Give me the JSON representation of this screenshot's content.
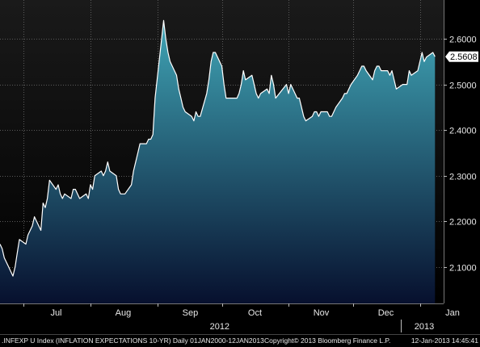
{
  "chart_data": {
    "type": "area",
    "title": "",
    "xlabel": "",
    "ylabel": "",
    "ylim": [
      2.02,
      2.685
    ],
    "y_ticks": [
      "2.6000",
      "2.5000",
      "2.4000",
      "2.3000",
      "2.2000",
      "2.1000"
    ],
    "y_tick_values": [
      2.6,
      2.5,
      2.4,
      2.3,
      2.2,
      2.1
    ],
    "month_ticks": [
      {
        "label": "Jul",
        "date": "2012-07-01"
      },
      {
        "label": "Aug",
        "date": "2012-08-01"
      },
      {
        "label": "Sep",
        "date": "2012-09-01"
      },
      {
        "label": "Oct",
        "date": "2012-10-01"
      },
      {
        "label": "Nov",
        "date": "2012-11-01"
      },
      {
        "label": "Dec",
        "date": "2012-12-01"
      },
      {
        "label": "Jan",
        "date": "2013-01-01"
      }
    ],
    "year_labels": [
      {
        "label": "2012",
        "date": "2012-09-30"
      },
      {
        "label": "2013",
        "date": "2013-01-03"
      }
    ],
    "x_range": [
      "2012-06-20",
      "2013-01-12"
    ],
    "last_value": "2.5608",
    "grid": true,
    "colors": {
      "background_top": "#1a1a1a",
      "background_bottom": "#000000",
      "area_top": "#3fa3b4",
      "area_bottom": "#07102e",
      "line": "#ffffff",
      "grid": "#5a5a5a",
      "last_box": "#ffffff"
    },
    "series": [
      {
        "points": [
          [
            "2012-06-20",
            2.15
          ],
          [
            "2012-06-21",
            2.14
          ],
          [
            "2012-06-22",
            2.12
          ],
          [
            "2012-06-24",
            2.1
          ],
          [
            "2012-06-25",
            2.09
          ],
          [
            "2012-06-26",
            2.08
          ],
          [
            "2012-06-27",
            2.1
          ],
          [
            "2012-06-28",
            2.13
          ],
          [
            "2012-06-29",
            2.16
          ],
          [
            "2012-07-02",
            2.15
          ],
          [
            "2012-07-03",
            2.17
          ],
          [
            "2012-07-05",
            2.19
          ],
          [
            "2012-07-06",
            2.21
          ],
          [
            "2012-07-09",
            2.18
          ],
          [
            "2012-07-10",
            2.24
          ],
          [
            "2012-07-11",
            2.23
          ],
          [
            "2012-07-12",
            2.25
          ],
          [
            "2012-07-13",
            2.29
          ],
          [
            "2012-07-16",
            2.27
          ],
          [
            "2012-07-17",
            2.28
          ],
          [
            "2012-07-18",
            2.26
          ],
          [
            "2012-07-19",
            2.25
          ],
          [
            "2012-07-20",
            2.26
          ],
          [
            "2012-07-23",
            2.25
          ],
          [
            "2012-07-24",
            2.27
          ],
          [
            "2012-07-25",
            2.27
          ],
          [
            "2012-07-26",
            2.26
          ],
          [
            "2012-07-27",
            2.25
          ],
          [
            "2012-07-30",
            2.26
          ],
          [
            "2012-07-31",
            2.25
          ],
          [
            "2012-08-01",
            2.28
          ],
          [
            "2012-08-02",
            2.27
          ],
          [
            "2012-08-03",
            2.3
          ],
          [
            "2012-08-06",
            2.31
          ],
          [
            "2012-08-07",
            2.3
          ],
          [
            "2012-08-08",
            2.31
          ],
          [
            "2012-08-09",
            2.33
          ],
          [
            "2012-08-10",
            2.31
          ],
          [
            "2012-08-13",
            2.3
          ],
          [
            "2012-08-14",
            2.27
          ],
          [
            "2012-08-15",
            2.26
          ],
          [
            "2012-08-16",
            2.26
          ],
          [
            "2012-08-17",
            2.26
          ],
          [
            "2012-08-20",
            2.28
          ],
          [
            "2012-08-21",
            2.31
          ],
          [
            "2012-08-22",
            2.33
          ],
          [
            "2012-08-23",
            2.35
          ],
          [
            "2012-08-24",
            2.37
          ],
          [
            "2012-08-27",
            2.37
          ],
          [
            "2012-08-28",
            2.38
          ],
          [
            "2012-08-29",
            2.38
          ],
          [
            "2012-08-30",
            2.39
          ],
          [
            "2012-08-31",
            2.47
          ],
          [
            "2012-09-04",
            2.64
          ],
          [
            "2012-09-05",
            2.6
          ],
          [
            "2012-09-06",
            2.57
          ],
          [
            "2012-09-07",
            2.55
          ],
          [
            "2012-09-10",
            2.52
          ],
          [
            "2012-09-11",
            2.49
          ],
          [
            "2012-09-12",
            2.47
          ],
          [
            "2012-09-13",
            2.45
          ],
          [
            "2012-09-14",
            2.44
          ],
          [
            "2012-09-17",
            2.43
          ],
          [
            "2012-09-18",
            2.42
          ],
          [
            "2012-09-19",
            2.44
          ],
          [
            "2012-09-20",
            2.43
          ],
          [
            "2012-09-21",
            2.43
          ],
          [
            "2012-09-24",
            2.48
          ],
          [
            "2012-09-25",
            2.51
          ],
          [
            "2012-09-26",
            2.55
          ],
          [
            "2012-09-27",
            2.57
          ],
          [
            "2012-09-28",
            2.57
          ],
          [
            "2012-10-01",
            2.54
          ],
          [
            "2012-10-02",
            2.5
          ],
          [
            "2012-10-03",
            2.47
          ],
          [
            "2012-10-04",
            2.47
          ],
          [
            "2012-10-05",
            2.47
          ],
          [
            "2012-10-08",
            2.47
          ],
          [
            "2012-10-09",
            2.48
          ],
          [
            "2012-10-10",
            2.5
          ],
          [
            "2012-10-11",
            2.53
          ],
          [
            "2012-10-12",
            2.51
          ],
          [
            "2012-10-15",
            2.52
          ],
          [
            "2012-10-16",
            2.5
          ],
          [
            "2012-10-17",
            2.48
          ],
          [
            "2012-10-18",
            2.47
          ],
          [
            "2012-10-19",
            2.48
          ],
          [
            "2012-10-22",
            2.49
          ],
          [
            "2012-10-23",
            2.48
          ],
          [
            "2012-10-24",
            2.52
          ],
          [
            "2012-10-25",
            2.5
          ],
          [
            "2012-10-26",
            2.47
          ],
          [
            "2012-10-31",
            2.5
          ],
          [
            "2012-11-01",
            2.48
          ],
          [
            "2012-11-02",
            2.5
          ],
          [
            "2012-11-05",
            2.47
          ],
          [
            "2012-11-06",
            2.47
          ],
          [
            "2012-11-07",
            2.45
          ],
          [
            "2012-11-08",
            2.43
          ],
          [
            "2012-11-09",
            2.42
          ],
          [
            "2012-11-12",
            2.43
          ],
          [
            "2012-11-13",
            2.44
          ],
          [
            "2012-11-14",
            2.44
          ],
          [
            "2012-11-15",
            2.43
          ],
          [
            "2012-11-16",
            2.44
          ],
          [
            "2012-11-19",
            2.44
          ],
          [
            "2012-11-20",
            2.43
          ],
          [
            "2012-11-21",
            2.43
          ],
          [
            "2012-11-23",
            2.45
          ],
          [
            "2012-11-26",
            2.47
          ],
          [
            "2012-11-27",
            2.48
          ],
          [
            "2012-11-28",
            2.48
          ],
          [
            "2012-11-29",
            2.49
          ],
          [
            "2012-11-30",
            2.5
          ],
          [
            "2012-12-03",
            2.52
          ],
          [
            "2012-12-04",
            2.53
          ],
          [
            "2012-12-05",
            2.54
          ],
          [
            "2012-12-06",
            2.54
          ],
          [
            "2012-12-07",
            2.53
          ],
          [
            "2012-12-10",
            2.51
          ],
          [
            "2012-12-11",
            2.53
          ],
          [
            "2012-12-12",
            2.54
          ],
          [
            "2012-12-13",
            2.54
          ],
          [
            "2012-12-14",
            2.53
          ],
          [
            "2012-12-17",
            2.53
          ],
          [
            "2012-12-18",
            2.52
          ],
          [
            "2012-12-19",
            2.53
          ],
          [
            "2012-12-20",
            2.51
          ],
          [
            "2012-12-21",
            2.49
          ],
          [
            "2012-12-24",
            2.5
          ],
          [
            "2012-12-26",
            2.5
          ],
          [
            "2012-12-27",
            2.53
          ],
          [
            "2012-12-28",
            2.52
          ],
          [
            "2012-12-31",
            2.53
          ],
          [
            "2013-01-02",
            2.57
          ],
          [
            "2013-01-03",
            2.55
          ],
          [
            "2013-01-04",
            2.56
          ],
          [
            "2013-01-07",
            2.57
          ],
          [
            "2013-01-08",
            2.5608
          ]
        ]
      }
    ]
  },
  "footer": {
    "ticker": ".INFEXP U Index (INFLATION EXPECTATIONS 10-YR)  Daily 01JAN2000-12JAN2013",
    "copyright": "Copyright© 2013 Bloomberg Finance L.P.",
    "timestamp": "12-Jan-2013 14:45:41"
  }
}
